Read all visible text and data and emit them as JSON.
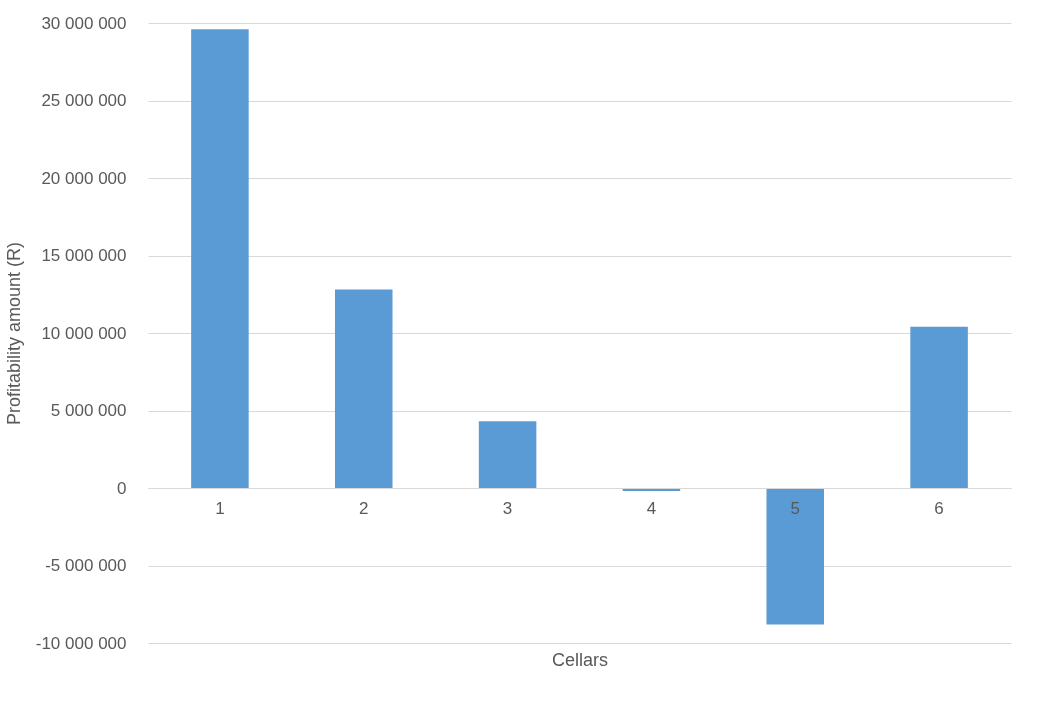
{
  "chart_data": {
    "type": "bar",
    "xlabel": "Cellars",
    "ylabel": "Profitability amount (R)",
    "categories": [
      "1",
      "2",
      "3",
      "4",
      "5",
      "6"
    ],
    "values": [
      29600000,
      12800000,
      4300000,
      -200000,
      -8800000,
      10400000
    ],
    "color": "#5b9bd5",
    "ylim": [
      -10000000,
      30000000
    ],
    "yticks": [
      {
        "value": -10000000,
        "label": "-10 000 000"
      },
      {
        "value": -5000000,
        "label": "-5 000 000"
      },
      {
        "value": 0,
        "label": "0"
      },
      {
        "value": 5000000,
        "label": "5 000 000"
      },
      {
        "value": 10000000,
        "label": "10 000 000"
      },
      {
        "value": 15000000,
        "label": "15 000 000"
      },
      {
        "value": 20000000,
        "label": "20 000 000"
      },
      {
        "value": 25000000,
        "label": "25 000 000"
      },
      {
        "value": 30000000,
        "label": "30 000 000"
      }
    ],
    "grid": "y"
  }
}
